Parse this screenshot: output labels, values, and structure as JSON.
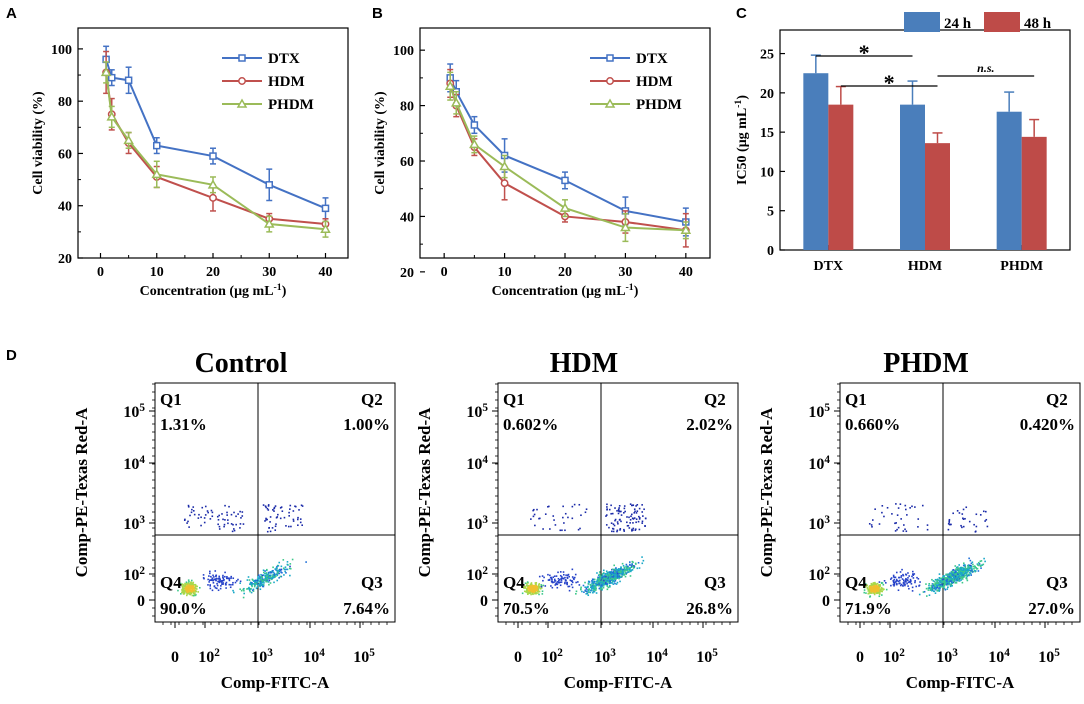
{
  "chart_data": [
    {
      "id": "A",
      "panel_label": "A",
      "type": "line",
      "x": [
        1,
        2,
        5,
        10,
        20,
        30,
        40
      ],
      "xticks": [
        "0",
        "10",
        "20",
        "30",
        "40"
      ],
      "yticks": [
        "20",
        "40",
        "60",
        "80",
        "100"
      ],
      "xlabel": "Concentration (μg mL",
      "xlabel_sup": "-1",
      "xlabel_end": ")",
      "ylabel": "Cell viability (%)",
      "xlim": [
        -4,
        44
      ],
      "ylim": [
        20,
        108
      ],
      "series": [
        {
          "name": "DTX",
          "color": "#4472c4",
          "values": [
            96,
            89,
            88,
            63,
            59,
            48,
            39
          ],
          "err": [
            5,
            3,
            5,
            3,
            3,
            6,
            4
          ]
        },
        {
          "name": "HDM",
          "color": "#c0504d",
          "values": [
            91,
            75,
            64,
            51,
            43,
            35,
            33
          ],
          "err": [
            8,
            6,
            4,
            4,
            5,
            2,
            2
          ]
        },
        {
          "name": "PHDM",
          "color": "#9bbb59",
          "values": [
            91,
            74,
            65,
            52,
            48,
            33,
            31
          ],
          "err": [
            4,
            4,
            3,
            5,
            3,
            3,
            3
          ]
        }
      ]
    },
    {
      "id": "B",
      "panel_label": "B",
      "type": "line",
      "x": [
        1,
        2,
        5,
        10,
        20,
        30,
        40
      ],
      "xticks": [
        "0",
        "10",
        "20",
        "30",
        "40"
      ],
      "yticks": [
        "20",
        "40",
        "60",
        "80",
        "100"
      ],
      "xlabel": "Concentration (μg mL",
      "xlabel_sup": "-1",
      "xlabel_end": ")",
      "ylabel": "Cell viability (%)",
      "xlim": [
        -4,
        44
      ],
      "ylim": [
        25,
        108
      ],
      "series": [
        {
          "name": "DTX",
          "color": "#4472c4",
          "values": [
            90,
            85,
            73,
            62,
            53,
            42,
            38
          ],
          "err": [
            5,
            4,
            3,
            6,
            3,
            5,
            5
          ]
        },
        {
          "name": "HDM",
          "color": "#c0504d",
          "values": [
            88,
            80,
            65,
            52,
            40,
            38,
            35
          ],
          "err": [
            5,
            4,
            3,
            6,
            2,
            4,
            6
          ]
        },
        {
          "name": "PHDM",
          "color": "#9bbb59",
          "values": [
            87,
            81,
            66,
            58,
            43,
            36,
            35
          ],
          "err": [
            5,
            4,
            3,
            4,
            3,
            5,
            3
          ]
        }
      ]
    },
    {
      "id": "C",
      "panel_label": "C",
      "type": "bar",
      "categories": [
        "DTX",
        "HDM",
        "PHDM"
      ],
      "ylabel": "IC50 (μg mL",
      "ylabel_sup": "-1",
      "ylabel_end": ")",
      "yticks": [
        "0",
        "5",
        "10",
        "15",
        "20",
        "25"
      ],
      "ylim": [
        0,
        28
      ],
      "series": [
        {
          "name": "24 h",
          "color": "#4a7ebb",
          "values": [
            22.5,
            18.5,
            17.6
          ],
          "err": [
            2.3,
            3.0,
            2.5
          ]
        },
        {
          "name": "48 h",
          "color": "#be4b48",
          "values": [
            18.5,
            13.6,
            14.4
          ],
          "err": [
            2.3,
            1.3,
            2.2
          ]
        }
      ],
      "annotations": [
        {
          "text": "*",
          "from": "DTX-24h",
          "to": "HDM-24h"
        },
        {
          "text": "*",
          "from": "DTX-48h",
          "to": "HDM-48h"
        },
        {
          "text": "n.s.",
          "from": "HDM-48h",
          "to": "PHDM-48h"
        }
      ]
    },
    {
      "id": "D",
      "panel_label": "D",
      "type": "scatter",
      "xlabel": "Comp-FITC-A",
      "ylabel": "Comp-PE-Texas Red-A",
      "xticks": [
        "0",
        "10",
        "10",
        "10",
        "10"
      ],
      "yticks": [
        "0",
        "10",
        "10",
        "10",
        "10"
      ],
      "tick_exponents": [
        "",
        "2",
        "3",
        "4",
        "5"
      ],
      "plots": [
        {
          "title": "Control",
          "quadrants": {
            "Q1": "1.31%",
            "Q2": "1.00%",
            "Q3": "7.64%",
            "Q4": "90.0%"
          }
        },
        {
          "title": "HDM",
          "quadrants": {
            "Q1": "0.602%",
            "Q2": "2.02%",
            "Q3": "26.8%",
            "Q4": "70.5%"
          }
        },
        {
          "title": "PHDM",
          "quadrants": {
            "Q1": "0.660%",
            "Q2": "0.420%",
            "Q3": "27.0%",
            "Q4": "71.9%"
          }
        }
      ]
    }
  ]
}
